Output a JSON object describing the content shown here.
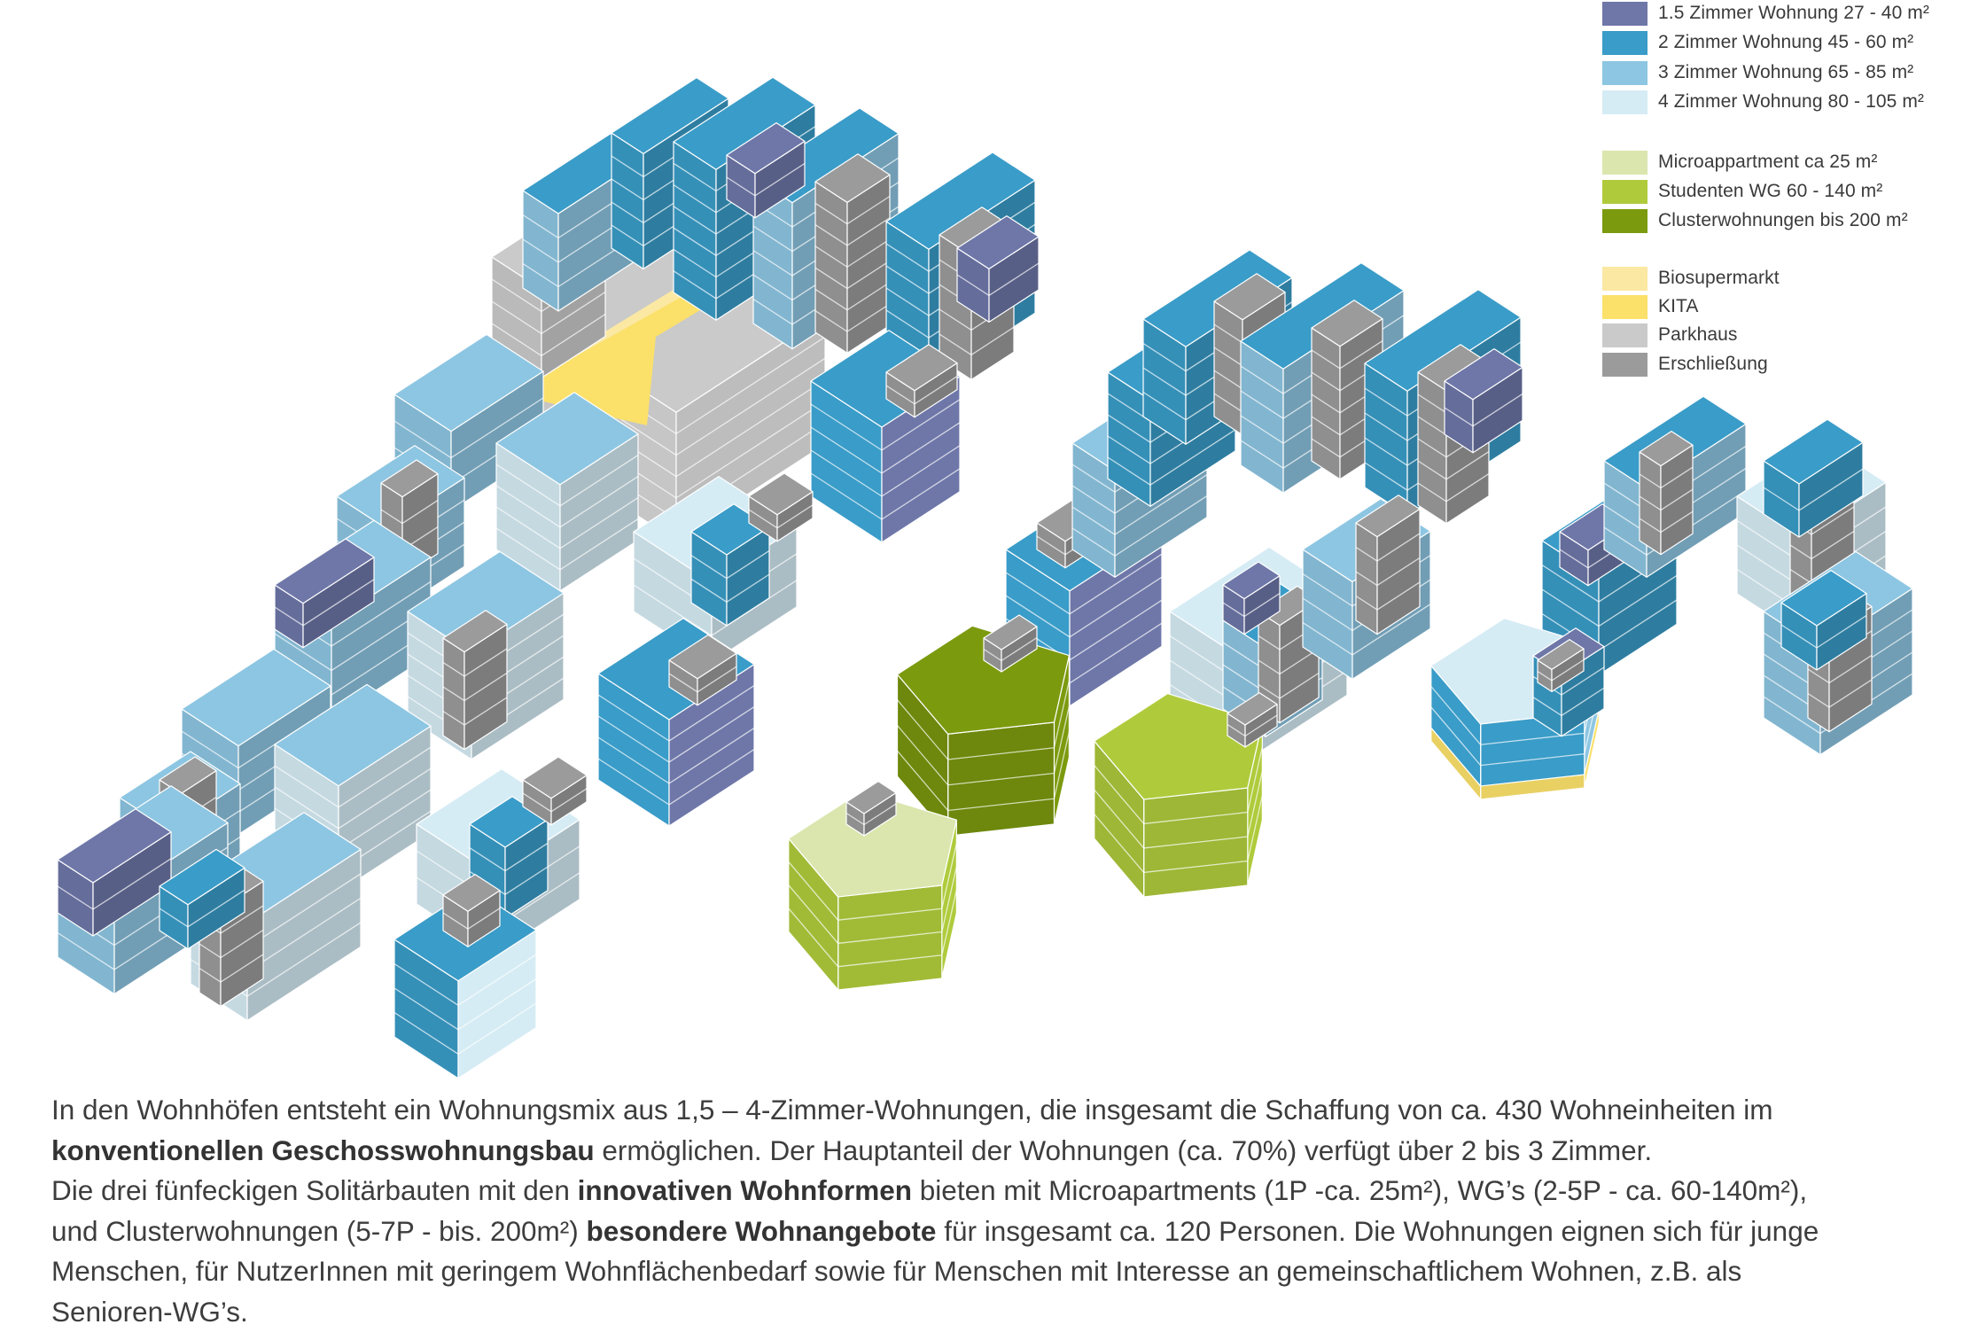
{
  "legend": {
    "items": [
      {
        "label": "1.5 Zimmer Wohnung 27 - 40 m²",
        "color": "#6E77A8"
      },
      {
        "label": "2 Zimmer Wohnung 45 - 60 m²",
        "color": "#3A9CC8"
      },
      {
        "label": "3 Zimmer Wohnung 65 - 85 m²",
        "color": "#8DC6E2"
      },
      {
        "label": "4 Zimmer Wohnung 80 - 105 m²",
        "color": "#D6ECF5"
      },
      {
        "label": "Microappartment ca 25 m²",
        "color": "#DAE6AE"
      },
      {
        "label": "Studenten WG 60 - 140 m²",
        "color": "#AFCB3C"
      },
      {
        "label": "Clusterwohnungen bis 200 m²",
        "color": "#7C9A0E"
      },
      {
        "label": "Biosupermarkt",
        "color": "#FBE8A2"
      },
      {
        "label": "KITA",
        "color": "#FBE06A"
      },
      {
        "label": "Parkhaus",
        "color": "#CACACA"
      },
      {
        "label": "Erschließung",
        "color": "#9B9B9B"
      }
    ]
  },
  "caption": {
    "line1_a": "In den Wohnhöfen entsteht ein Wohnungsmix aus  1,5 – 4-Zimmer-Wohnungen, die insgesamt die Schaffung von ca. 430 Wohneinheiten im",
    "line2_bold": "konventionellen Geschosswohnungsbau",
    "line2_b": " ermöglichen. Der Hauptanteil der Wohnungen (ca. 70%) verfügt über 2 bis 3 Zimmer.",
    "line3_a": "Die drei fünfeckigen Solitärbauten mit den ",
    "line3_bold": "innovativen Wohnformen",
    "line3_b": " bieten mit Microapartments (1P -ca. 25m²), WG’s (2-5P - ca. 60-140m²),",
    "line4_a": "und Clusterwohnungen (5-7P - bis. 200m²) ",
    "line4_bold": "besondere Wohnangebote",
    "line4_b": " für insgesamt ca. 120 Personen. Die Wohnungen eignen sich für junge",
    "line5": "Menschen, für NutzerInnen mit geringem Wohnflächenbedarf sowie für Menschen mit Interesse an gemeinschaftlichem Wohnen, z.B. als",
    "line6": "Senioren-WG’s."
  }
}
